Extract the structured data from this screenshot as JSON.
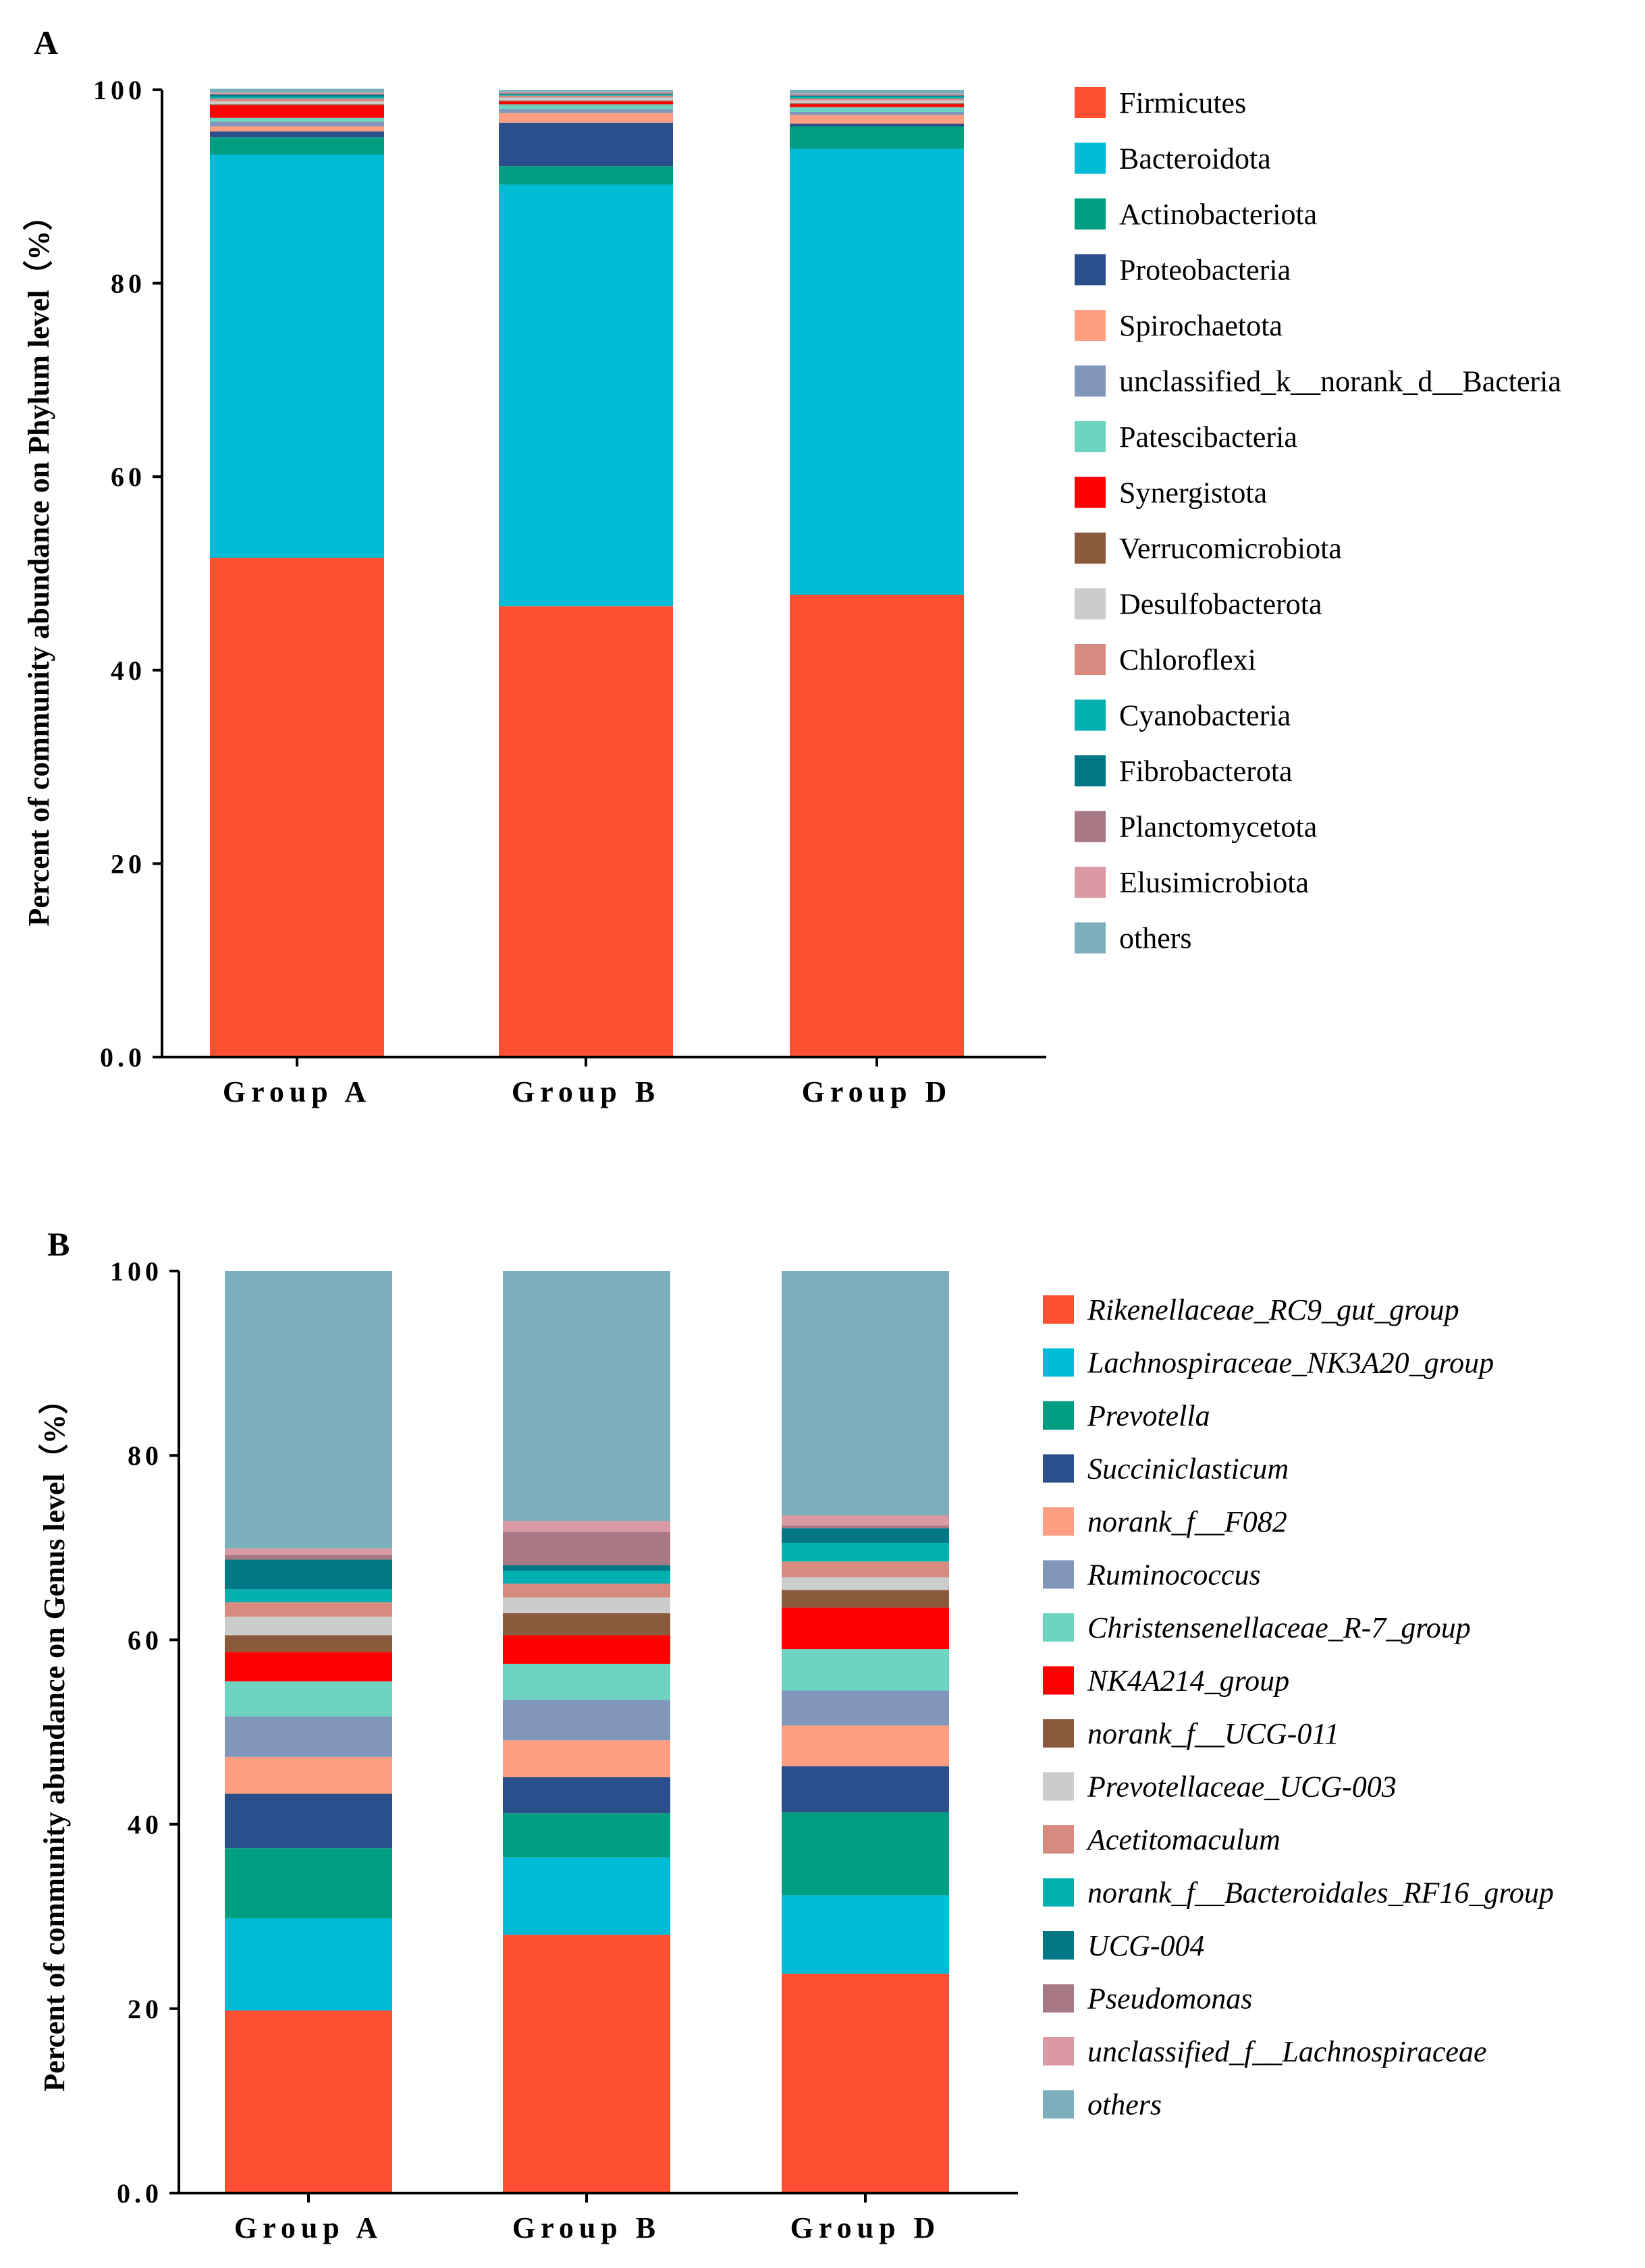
{
  "colors": {
    "c1": "#FF4F33",
    "c2": "#00BBD6",
    "c3": "#009E80",
    "c4": "#2A4F8A",
    "c5": "#FF9E80",
    "c6": "#8096BA",
    "c7": "#6FD3C2",
    "c8": "#FF0000",
    "c9": "#8B5A3C",
    "c10": "#CCCCCC",
    "c11": "#D68A80",
    "c12": "#00B0B0",
    "c13": "#007785",
    "c14": "#A87885",
    "c15": "#D99AA3",
    "c16": "#7AAFBB"
  },
  "chart_data": [
    {
      "panel": "A",
      "type": "bar",
      "stacked": true,
      "ylabel": "Percent of community abundance on Phylum level（%）",
      "ylim": [
        0,
        100
      ],
      "yticks": [
        "0.0",
        "20",
        "40",
        "60",
        "80",
        "100"
      ],
      "categories": [
        "Group A",
        "Group B",
        "Group D"
      ],
      "legend_italic": false,
      "series": [
        {
          "name": "Firmicutes",
          "color": "c1",
          "values": [
            51.6,
            46.6,
            47.8
          ]
        },
        {
          "name": "Bacteroidota",
          "color": "c2",
          "values": [
            41.7,
            43.6,
            46.1
          ]
        },
        {
          "name": "Actinobacteriota",
          "color": "c3",
          "values": [
            1.8,
            1.9,
            2.3
          ]
        },
        {
          "name": "Proteobacteria",
          "color": "c4",
          "values": [
            0.6,
            4.5,
            0.3
          ]
        },
        {
          "name": "Spirochaetota",
          "color": "c5",
          "values": [
            0.5,
            1.0,
            0.9
          ]
        },
        {
          "name": "unclassified_k__norank_d__Bacteria",
          "color": "c6",
          "values": [
            0.5,
            0.4,
            0.3
          ]
        },
        {
          "name": "Patescibacteria",
          "color": "c7",
          "values": [
            0.4,
            0.5,
            0.5
          ]
        },
        {
          "name": "Synergistota",
          "color": "c8",
          "values": [
            1.3,
            0.3,
            0.3
          ]
        },
        {
          "name": "Verrucomicrobiota",
          "color": "c9",
          "values": [
            0.1,
            0.1,
            0.1
          ]
        },
        {
          "name": "Desulfobacterota",
          "color": "c10",
          "values": [
            0.3,
            0.3,
            0.3
          ]
        },
        {
          "name": "Chloroflexi",
          "color": "c11",
          "values": [
            0.3,
            0.2,
            0.2
          ]
        },
        {
          "name": "Cyanobacteria",
          "color": "c12",
          "values": [
            0.2,
            0.1,
            0.2
          ]
        },
        {
          "name": "Fibrobacterota",
          "color": "c13",
          "values": [
            0.2,
            0.1,
            0.1
          ]
        },
        {
          "name": "Planctomycetota",
          "color": "c14",
          "values": [
            0.1,
            0.1,
            0.1
          ]
        },
        {
          "name": "Elusimicrobiota",
          "color": "c15",
          "values": [
            0.1,
            0.1,
            0.1
          ]
        },
        {
          "name": "others",
          "color": "c16",
          "values": [
            0.4,
            0.2,
            0.4
          ]
        }
      ]
    },
    {
      "panel": "B",
      "type": "bar",
      "stacked": true,
      "ylabel": "Percent of community abundance on Genus level（%）",
      "ylim": [
        0,
        100
      ],
      "yticks": [
        "0.0",
        "20",
        "40",
        "60",
        "80",
        "100"
      ],
      "categories": [
        "Group A",
        "Group B",
        "Group D"
      ],
      "legend_italic": true,
      "series": [
        {
          "name": "Rikenellaceae_RC9_gut_group",
          "color": "c1",
          "values": [
            19.8,
            28.0,
            23.8
          ]
        },
        {
          "name": "Lachnospiraceae_NK3A20_group",
          "color": "c2",
          "values": [
            10.0,
            8.4,
            8.5
          ]
        },
        {
          "name": "Prevotella",
          "color": "c3",
          "values": [
            7.6,
            4.8,
            9.0
          ]
        },
        {
          "name": "Succiniclasticum",
          "color": "c4",
          "values": [
            5.9,
            3.9,
            5.0
          ]
        },
        {
          "name": "norank_f__F082",
          "color": "c5",
          "values": [
            4.0,
            4.0,
            4.4
          ]
        },
        {
          "name": "Ruminococcus",
          "color": "c6",
          "values": [
            4.4,
            4.4,
            3.8
          ]
        },
        {
          "name": "Christensenellaceae_R-7_group",
          "color": "c7",
          "values": [
            3.8,
            3.9,
            4.5
          ]
        },
        {
          "name": "NK4A214_group",
          "color": "c8",
          "values": [
            3.2,
            3.1,
            4.5
          ]
        },
        {
          "name": "norank_f__UCG-011",
          "color": "c9",
          "values": [
            1.8,
            2.4,
            1.9
          ]
        },
        {
          "name": "Prevotellaceae_UCG-003",
          "color": "c10",
          "values": [
            2.0,
            1.7,
            1.4
          ]
        },
        {
          "name": "Acetitomaculum",
          "color": "c11",
          "values": [
            1.6,
            1.5,
            1.7
          ]
        },
        {
          "name": "norank_f__Bacteroidales_RF16_group",
          "color": "c12",
          "values": [
            1.4,
            1.4,
            2.0
          ]
        },
        {
          "name": "UCG-004",
          "color": "c13",
          "values": [
            3.2,
            0.6,
            1.6
          ]
        },
        {
          "name": "Pseudomonas",
          "color": "c14",
          "values": [
            0.5,
            3.6,
            0.3
          ]
        },
        {
          "name": "unclassified_f__Lachnospiraceae",
          "color": "c15",
          "values": [
            0.7,
            1.2,
            1.1
          ]
        },
        {
          "name": "others",
          "color": "c16",
          "values": [
            30.1,
            27.1,
            26.5
          ]
        }
      ]
    }
  ]
}
